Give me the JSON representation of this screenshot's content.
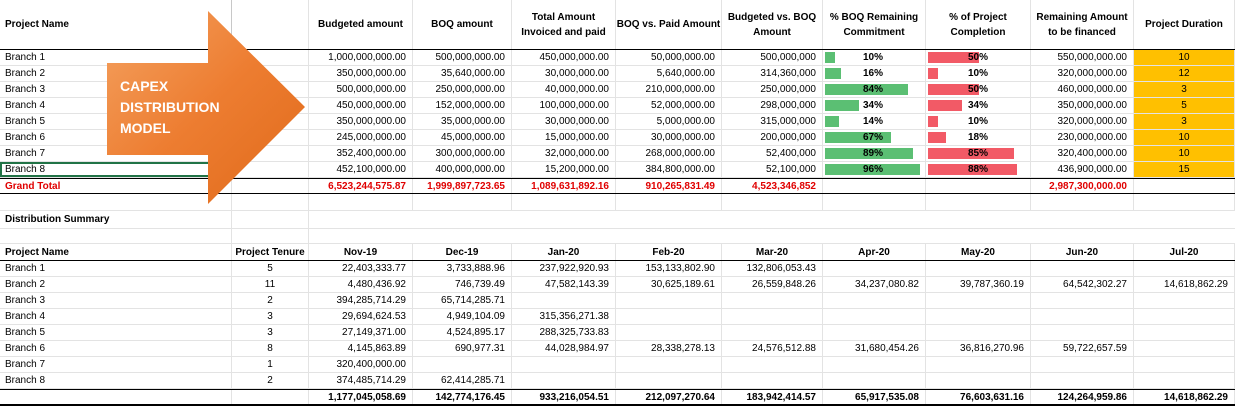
{
  "arrow": {
    "line1": "CAPEX",
    "line2": "DISTRIBUTION",
    "line3": "MODEL"
  },
  "top_table": {
    "headers": {
      "project_name": "Project Name",
      "budgeted": "Budgeted amount",
      "boq": "BOQ amount",
      "invoiced": "Total Amount Invoiced and paid",
      "boq_paid": "BOQ vs. Paid Amount",
      "budget_boq": "Budgeted vs. BOQ Amount",
      "boq_remaining": "% BOQ Remaining Commitment",
      "completion": "% of Project Completion",
      "remaining": "Remaining Amount to be financed",
      "duration": "Project Duration"
    },
    "rows": [
      {
        "name": "Branch 1",
        "budgeted": "1,000,000,000.00",
        "boq": "500,000,000.00",
        "invoiced": "450,000,000.00",
        "boq_paid": "50,000,000.00",
        "budget_boq": "500,000,000",
        "boq_rem": "10%",
        "boq_rem_val": 0.1,
        "comp": "50%",
        "comp_val": 0.5,
        "remaining": "550,000,000.00",
        "duration": "10"
      },
      {
        "name": "Branch 2",
        "budgeted": "350,000,000.00",
        "boq": "35,640,000.00",
        "invoiced": "30,000,000.00",
        "boq_paid": "5,640,000.00",
        "budget_boq": "314,360,000",
        "boq_rem": "16%",
        "boq_rem_val": 0.16,
        "comp": "10%",
        "comp_val": 0.1,
        "remaining": "320,000,000.00",
        "duration": "12"
      },
      {
        "name": "Branch 3",
        "budgeted": "500,000,000.00",
        "boq": "250,000,000.00",
        "invoiced": "40,000,000.00",
        "boq_paid": "210,000,000.00",
        "budget_boq": "250,000,000",
        "boq_rem": "84%",
        "boq_rem_val": 0.84,
        "comp": "50%",
        "comp_val": 0.5,
        "remaining": "460,000,000.00",
        "duration": "3"
      },
      {
        "name": "Branch 4",
        "budgeted": "450,000,000.00",
        "boq": "152,000,000.00",
        "invoiced": "100,000,000.00",
        "boq_paid": "52,000,000.00",
        "budget_boq": "298,000,000",
        "boq_rem": "34%",
        "boq_rem_val": 0.34,
        "comp": "34%",
        "comp_val": 0.34,
        "remaining": "350,000,000.00",
        "duration": "5"
      },
      {
        "name": "Branch 5",
        "budgeted": "350,000,000.00",
        "boq": "35,000,000.00",
        "invoiced": "30,000,000.00",
        "boq_paid": "5,000,000.00",
        "budget_boq": "315,000,000",
        "boq_rem": "14%",
        "boq_rem_val": 0.14,
        "comp": "10%",
        "comp_val": 0.1,
        "remaining": "320,000,000.00",
        "duration": "3"
      },
      {
        "name": "Branch 6",
        "budgeted": "245,000,000.00",
        "boq": "45,000,000.00",
        "invoiced": "15,000,000.00",
        "boq_paid": "30,000,000.00",
        "budget_boq": "200,000,000",
        "boq_rem": "67%",
        "boq_rem_val": 0.67,
        "comp": "18%",
        "comp_val": 0.18,
        "remaining": "230,000,000.00",
        "duration": "10"
      },
      {
        "name": "Branch 7",
        "budgeted": "352,400,000.00",
        "boq": "300,000,000.00",
        "invoiced": "32,000,000.00",
        "boq_paid": "268,000,000.00",
        "budget_boq": "52,400,000",
        "boq_rem": "89%",
        "boq_rem_val": 0.89,
        "comp": "85%",
        "comp_val": 0.85,
        "remaining": "320,400,000.00",
        "duration": "10"
      },
      {
        "name": "Branch 8",
        "budgeted": "452,100,000.00",
        "boq": "400,000,000.00",
        "invoiced": "15,200,000.00",
        "boq_paid": "384,800,000.00",
        "budget_boq": "52,100,000",
        "boq_rem": "96%",
        "boq_rem_val": 0.96,
        "comp": "88%",
        "comp_val": 0.88,
        "remaining": "436,900,000.00",
        "duration": "15"
      }
    ],
    "total": {
      "name": "Grand Total",
      "budgeted": "6,523,244,575.87",
      "boq": "1,999,897,723.65",
      "invoiced": "1,089,631,892.16",
      "boq_paid": "910,265,831.49",
      "budget_boq": "4,523,346,852",
      "remaining": "2,987,300,000.00"
    }
  },
  "summary": {
    "title": "Distribution Summary",
    "headers": {
      "project_name": "Project Name",
      "tenure": "Project Tenure",
      "months": [
        "Nov-19",
        "Dec-19",
        "Jan-20",
        "Feb-20",
        "Mar-20",
        "Apr-20",
        "May-20",
        "Jun-20",
        "Jul-20"
      ]
    },
    "rows": [
      {
        "name": "Branch 1",
        "tenure": "5",
        "vals": [
          "22,403,333.77",
          "3,733,888.96",
          "237,922,920.93",
          "153,133,802.90",
          "132,806,053.43",
          "",
          "",
          "",
          ""
        ]
      },
      {
        "name": "Branch 2",
        "tenure": "11",
        "vals": [
          "4,480,436.92",
          "746,739.49",
          "47,582,143.39",
          "30,625,189.61",
          "26,559,848.26",
          "34,237,080.82",
          "39,787,360.19",
          "64,542,302.27",
          "14,618,862.29"
        ]
      },
      {
        "name": "Branch 3",
        "tenure": "2",
        "vals": [
          "394,285,714.29",
          "65,714,285.71",
          "",
          "",
          "",
          "",
          "",
          "",
          ""
        ]
      },
      {
        "name": "Branch 4",
        "tenure": "3",
        "vals": [
          "29,694,624.53",
          "4,949,104.09",
          "315,356,271.38",
          "",
          "",
          "",
          "",
          "",
          ""
        ]
      },
      {
        "name": "Branch 5",
        "tenure": "3",
        "vals": [
          "27,149,371.00",
          "4,524,895.17",
          "288,325,733.83",
          "",
          "",
          "",
          "",
          "",
          ""
        ]
      },
      {
        "name": "Branch 6",
        "tenure": "8",
        "vals": [
          "4,145,863.89",
          "690,977.31",
          "44,028,984.97",
          "28,338,278.13",
          "24,576,512.88",
          "31,680,454.26",
          "36,816,270.96",
          "59,722,657.59",
          ""
        ]
      },
      {
        "name": "Branch 7",
        "tenure": "1",
        "vals": [
          "320,400,000.00",
          "",
          "",
          "",
          "",
          "",
          "",
          "",
          ""
        ]
      },
      {
        "name": "Branch 8",
        "tenure": "2",
        "vals": [
          "374,485,714.29",
          "62,414,285.71",
          "",
          "",
          "",
          "",
          "",
          "",
          ""
        ]
      }
    ],
    "totals": [
      "1,177,045,058.69",
      "142,774,176.45",
      "933,216,054.51",
      "212,097,270.64",
      "183,942,414.57",
      "65,917,535.08",
      "76,603,631.16",
      "124,264,959.86",
      "14,618,862.29"
    ]
  },
  "colors": {
    "accent_orange": "#ed7d31",
    "duration_fill": "#ffc000",
    "bar_green": "#5bbf73",
    "bar_red": "#f25a66",
    "total_red": "#e00000"
  }
}
